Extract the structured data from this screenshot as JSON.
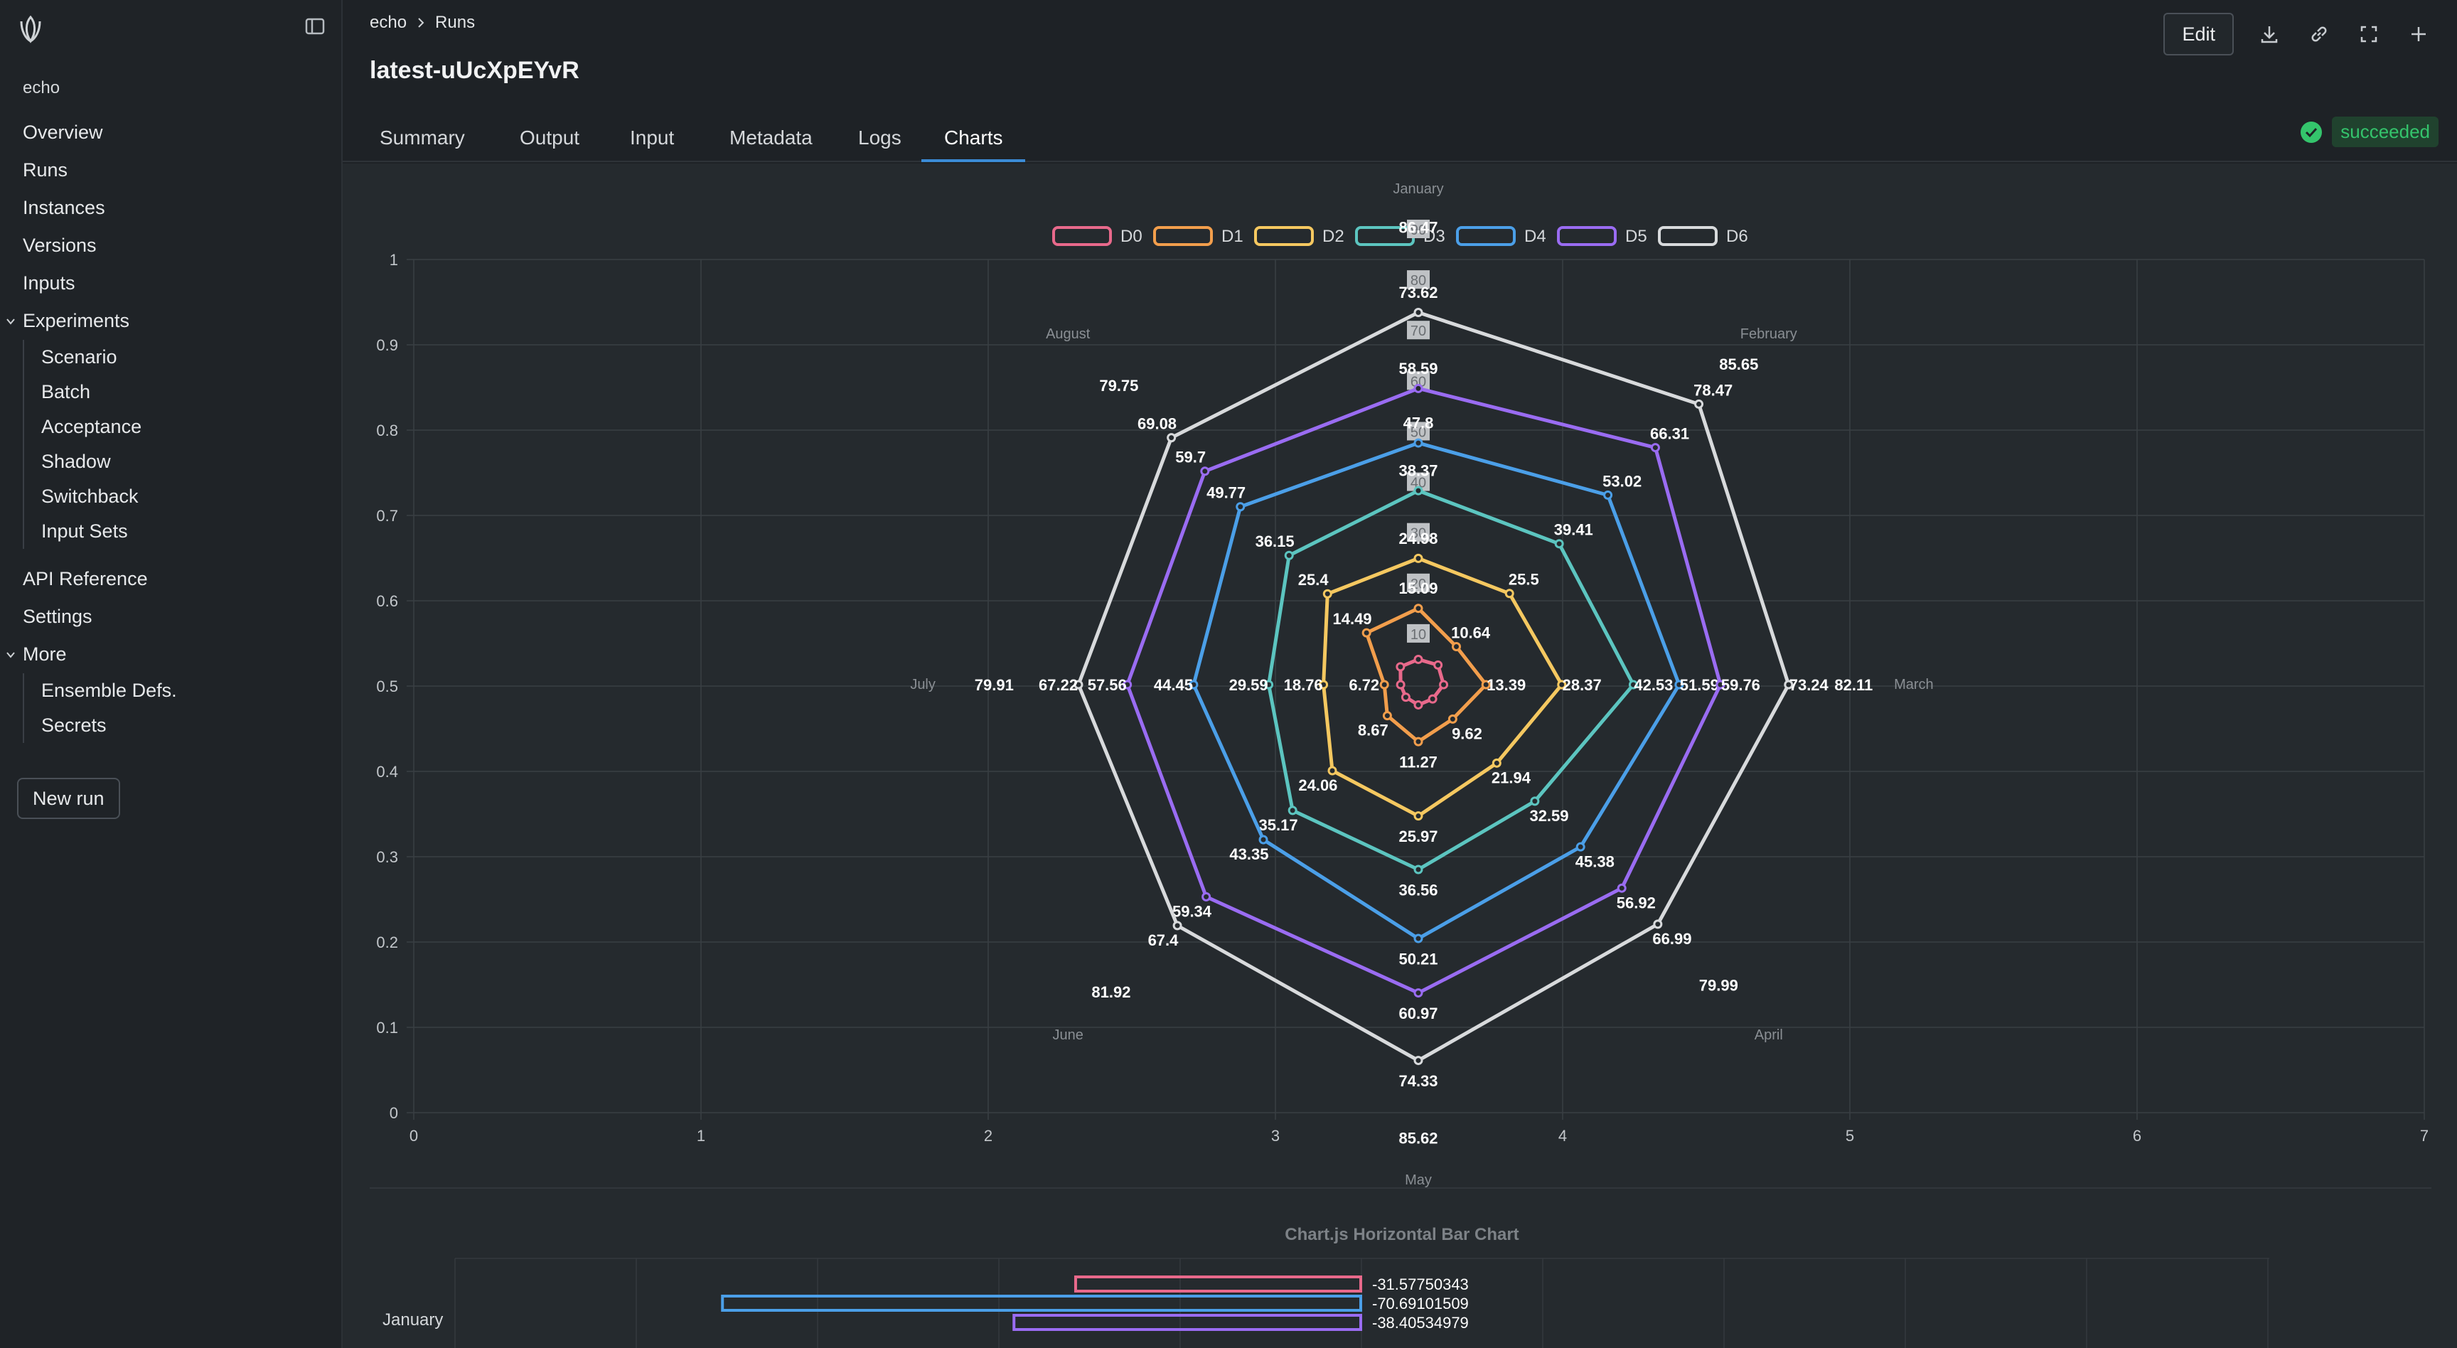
{
  "sidebar": {
    "app_name": "echo",
    "nav": [
      "Overview",
      "Runs",
      "Instances",
      "Versions",
      "Inputs"
    ],
    "experiments_label": "Experiments",
    "experiments_items": [
      "Scenario",
      "Batch",
      "Acceptance",
      "Shadow",
      "Switchback",
      "Input Sets"
    ],
    "nav2": [
      "API Reference",
      "Settings"
    ],
    "more_label": "More",
    "more_items": [
      "Ensemble Defs.",
      "Secrets"
    ],
    "new_run_label": "New run"
  },
  "header": {
    "breadcrumb": [
      "echo",
      "Runs"
    ],
    "title": "latest-uUcXpEYvR",
    "edit_label": "Edit",
    "tabs": [
      "Summary",
      "Output",
      "Input",
      "Metadata",
      "Logs",
      "Charts"
    ],
    "active_tab": "Charts",
    "status": "succeeded"
  },
  "chart_data": [
    {
      "type": "radar",
      "labels": [
        "January",
        "February",
        "March",
        "April",
        "May",
        "June",
        "July",
        "August"
      ],
      "legend_position": "top",
      "radial_ticks": [
        "10",
        "20",
        "30",
        "40",
        "50",
        "60",
        "70",
        "80",
        "90"
      ],
      "cartesian_x_ticks": [
        "0",
        "1",
        "2",
        "3",
        "4",
        "5",
        "6",
        "7"
      ],
      "cartesian_y_ticks": [
        "0",
        "0.1",
        "0.2",
        "0.3",
        "0.4",
        "0.5",
        "0.6",
        "0.7",
        "0.8",
        "0.9",
        "1"
      ],
      "series": [
        {
          "name": "D0",
          "color": "#e8698b",
          "values": [
            null,
            null,
            null,
            null,
            null,
            null,
            null,
            null
          ]
        },
        {
          "name": "D1",
          "color": "#f29e4c",
          "values": [
            15.09,
            10.64,
            13.39,
            9.62,
            11.27,
            8.67,
            6.72,
            14.49
          ]
        },
        {
          "name": "D2",
          "color": "#f5c860",
          "values": [
            24.98,
            25.5,
            28.37,
            21.94,
            25.97,
            24.06,
            18.76,
            25.4
          ]
        },
        {
          "name": "D3",
          "color": "#5cc5c0",
          "values": [
            38.37,
            39.41,
            42.53,
            32.59,
            36.56,
            35.17,
            29.59,
            36.15
          ]
        },
        {
          "name": "D4",
          "color": "#4b9fe8",
          "values": [
            47.8,
            53.02,
            51.59,
            45.38,
            50.21,
            43.35,
            44.45,
            49.77
          ]
        },
        {
          "name": "D5",
          "color": "#9a6cf2",
          "values": [
            58.59,
            66.31,
            59.76,
            56.92,
            60.97,
            59.34,
            57.56,
            59.7
          ]
        },
        {
          "name": "D6",
          "color": "#d8dadc",
          "values": [
            73.62,
            78.47,
            73.24,
            66.99,
            74.33,
            67.4,
            67.22,
            69.08
          ]
        },
        {
          "name": "",
          "color": "#ffffff",
          "values": [
            86.47,
            85.65,
            82.11,
            79.99,
            85.62,
            81.92,
            79.91,
            79.75
          ]
        }
      ]
    },
    {
      "type": "bar",
      "title": "Chart.js Horizontal Bar Chart",
      "categories": [
        "January"
      ],
      "series": [
        {
          "name": "D0",
          "color": "#e8698b",
          "values": [
            -31.57750343
          ]
        },
        {
          "name": "D4",
          "color": "#4b9fe8",
          "values": [
            -70.69101509
          ]
        },
        {
          "name": "D5",
          "color": "#9a6cf2",
          "values": [
            -38.40534979
          ]
        }
      ],
      "value_labels": [
        "-31.57750343",
        "-70.69101509",
        "-38.40534979"
      ]
    }
  ]
}
